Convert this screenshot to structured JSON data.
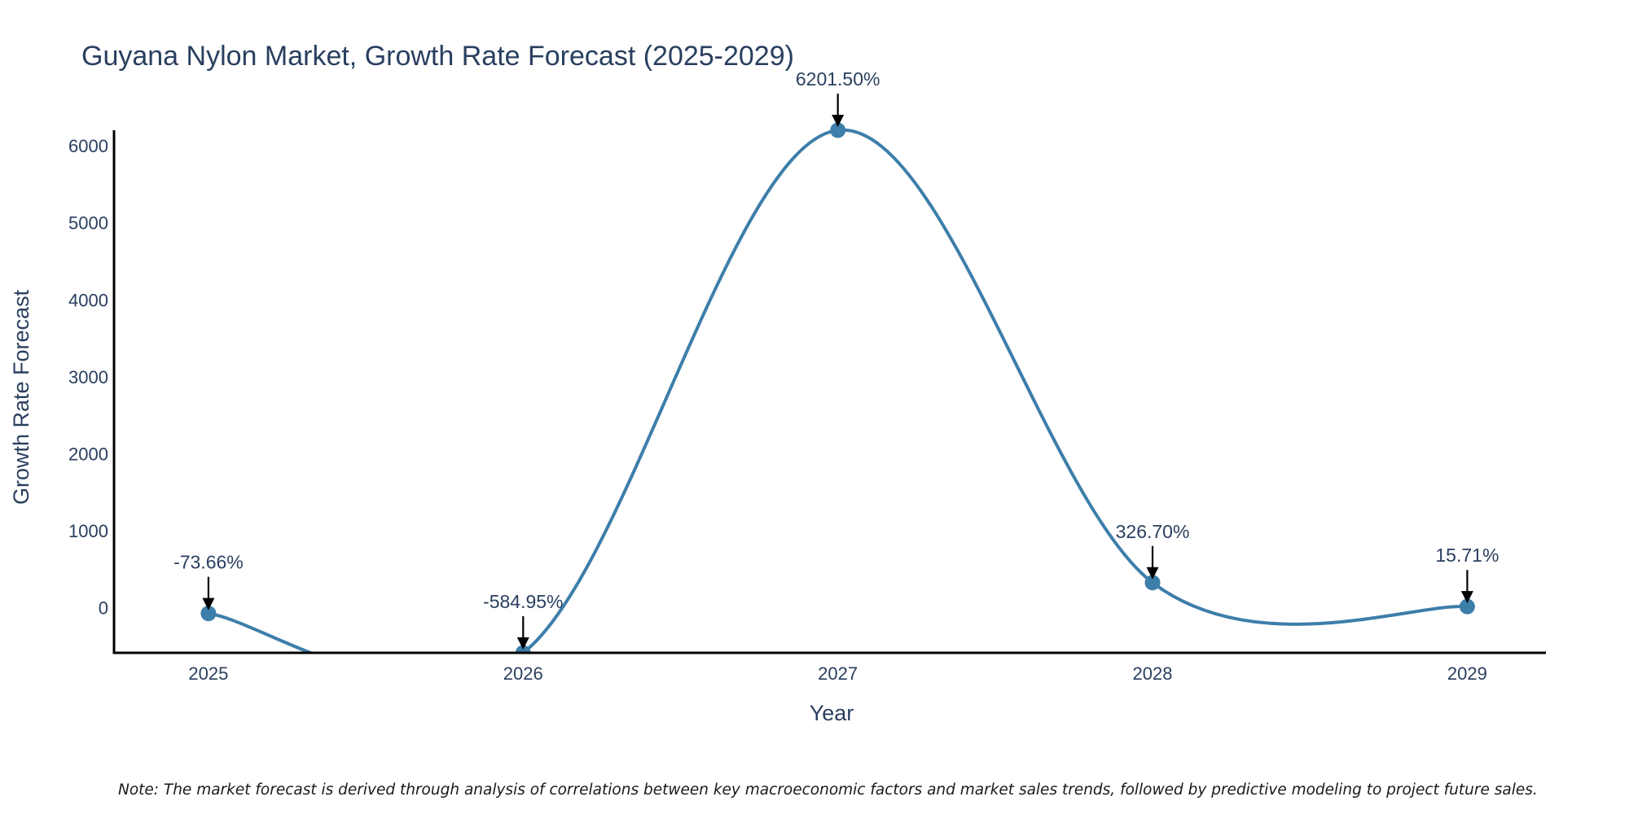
{
  "chart_data": {
    "type": "line",
    "title": "Guyana Nylon Market, Growth Rate Forecast (2025-2029)",
    "xlabel": "Year",
    "ylabel": "Growth Rate Forecast",
    "categories": [
      "2025",
      "2026",
      "2027",
      "2028",
      "2029"
    ],
    "x": [
      2025,
      2026,
      2027,
      2028,
      2029
    ],
    "values": [
      -73.66,
      -584.95,
      6201.5,
      326.7,
      15.71
    ],
    "data_labels": [
      "-73.66%",
      "-584.95%",
      "6201.50%",
      "326.70%",
      "15.71%"
    ],
    "x_ticks": [
      "2025",
      "2026",
      "2027",
      "2028",
      "2029"
    ],
    "y_ticks": [
      0,
      1000,
      2000,
      3000,
      4000,
      5000,
      6000
    ],
    "xlim": [
      2024.7,
      2029.25
    ],
    "ylim": [
      -584.95,
      6201.5
    ],
    "line_shape": "spline",
    "grid": false,
    "legend": "none",
    "colors": {
      "line": "#3d7eaa",
      "marker": "#3d7eaa",
      "axis": "#000000",
      "arrow": "#000000",
      "text": "#2a3f5f"
    }
  },
  "note": "Note: The market forecast is derived through analysis of correlations between key macroeconomic factors and market sales trends, followed by predictive modeling to project future sales."
}
